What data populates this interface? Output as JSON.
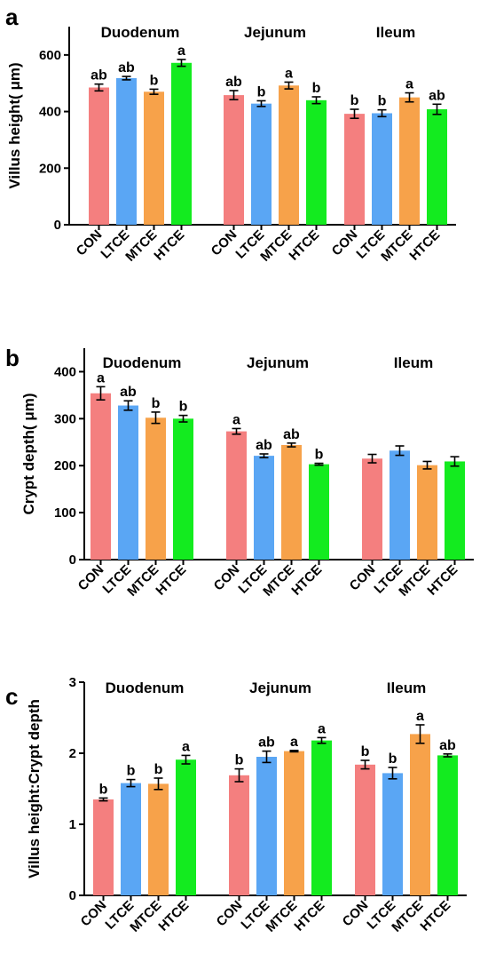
{
  "chart_data": [
    {
      "type": "bar",
      "panel": "a",
      "ylabel": "Villus height( μm)",
      "ylim": [
        0,
        700
      ],
      "yticks": [
        0,
        200,
        400,
        600
      ],
      "segments": [
        "Duodenum",
        "Jejunum",
        "Ileum"
      ],
      "categories": [
        "CON",
        "LTCE",
        "MTCE",
        "HTCE"
      ],
      "colors": [
        "#f47f7f",
        "#5aa6f4",
        "#f7a24a",
        "#13eb1f"
      ],
      "groups": [
        {
          "segment": "Duodenum",
          "values": [
            485,
            518,
            470,
            572
          ],
          "errors": [
            12,
            6,
            9,
            12
          ],
          "labels": [
            "ab",
            "ab",
            "b",
            "a"
          ]
        },
        {
          "segment": "Jejunum",
          "values": [
            458,
            428,
            492,
            440
          ],
          "errors": [
            16,
            10,
            12,
            12
          ],
          "labels": [
            "ab",
            "b",
            "a",
            "b"
          ]
        },
        {
          "segment": "Ileum",
          "values": [
            392,
            394,
            450,
            408
          ],
          "errors": [
            16,
            12,
            16,
            18
          ],
          "labels": [
            "b",
            "b",
            "a",
            "ab"
          ]
        }
      ]
    },
    {
      "type": "bar",
      "panel": "b",
      "ylabel": "Crypt depth( μm)",
      "ylim": [
        0,
        450
      ],
      "yticks": [
        0,
        100,
        200,
        300,
        400
      ],
      "segments": [
        "Duodenum",
        "Jejunum",
        "Ileum"
      ],
      "categories": [
        "CON",
        "LTCE",
        "MTCE",
        "HTCE"
      ],
      "colors": [
        "#f47f7f",
        "#5aa6f4",
        "#f7a24a",
        "#13eb1f"
      ],
      "groups": [
        {
          "segment": "Duodenum",
          "values": [
            354,
            328,
            302,
            300
          ],
          "errors": [
            14,
            10,
            12,
            7
          ],
          "labels": [
            "a",
            "ab",
            "b",
            "b"
          ]
        },
        {
          "segment": "Jejunum",
          "values": [
            273,
            221,
            244,
            203
          ],
          "errors": [
            6,
            4,
            4,
            2
          ],
          "labels": [
            "a",
            "ab",
            "ab",
            "b"
          ]
        },
        {
          "segment": "Ileum",
          "values": [
            215,
            232,
            201,
            209
          ],
          "errors": [
            9,
            10,
            8,
            10
          ],
          "labels": [
            "",
            "",
            "",
            ""
          ]
        }
      ]
    },
    {
      "type": "bar",
      "panel": "c",
      "ylabel": "Villus height:Crypt depth",
      "ylim": [
        0,
        3
      ],
      "yticks": [
        0,
        1,
        2,
        3
      ],
      "segments": [
        "Duodenum",
        "Jejunum",
        "Ileum"
      ],
      "categories": [
        "CON",
        "LTCE",
        "MTCE",
        "HTCE"
      ],
      "colors": [
        "#f47f7f",
        "#5aa6f4",
        "#f7a24a",
        "#13eb1f"
      ],
      "groups": [
        {
          "segment": "Duodenum",
          "values": [
            1.35,
            1.58,
            1.57,
            1.91
          ],
          "errors": [
            0.02,
            0.05,
            0.08,
            0.06
          ],
          "labels": [
            "b",
            "b",
            "b",
            "a"
          ]
        },
        {
          "segment": "Jejunum",
          "values": [
            1.69,
            1.95,
            2.03,
            2.18
          ],
          "errors": [
            0.09,
            0.08,
            0.01,
            0.04
          ],
          "labels": [
            "b",
            "ab",
            "a",
            "a"
          ]
        },
        {
          "segment": "Ileum",
          "values": [
            1.84,
            1.72,
            2.27,
            1.97
          ],
          "errors": [
            0.06,
            0.08,
            0.13,
            0.02
          ],
          "labels": [
            "b",
            "b",
            "a",
            "ab"
          ]
        }
      ]
    }
  ]
}
